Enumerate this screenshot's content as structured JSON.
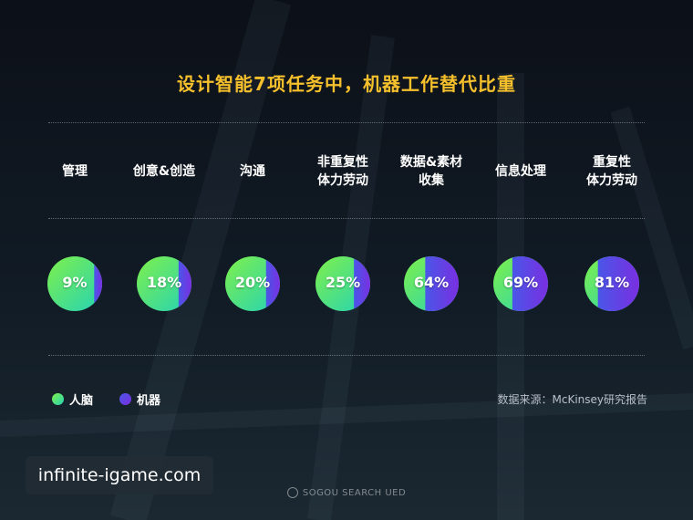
{
  "title": "设计智能7项任务中，机器工作替代比重",
  "legend": {
    "human": "人脑",
    "machine": "机器"
  },
  "colors": {
    "human_start": "#7ff04a",
    "human_end": "#25d3b5",
    "machine_start": "#4a56e8",
    "machine_end": "#7a2fe0",
    "title": "#f5c02c"
  },
  "source": "数据来源：McKinsey研究报告",
  "watermark": "infinite-igame.com",
  "footer": "SOGOU SEARCH UED",
  "chart_data": {
    "type": "pie",
    "title": "设计智能7项任务中，机器工作替代比重",
    "categories": [
      "管理",
      "创意&创造",
      "沟通",
      "非重复性\n体力劳动",
      "数据&素材\n收集",
      "信息处理",
      "重复性\n体力劳动"
    ],
    "series": [
      {
        "name": "机器",
        "values": [
          9,
          18,
          20,
          25,
          64,
          69,
          81
        ]
      },
      {
        "name": "人脑",
        "values": [
          91,
          82,
          80,
          75,
          36,
          31,
          19
        ]
      }
    ],
    "value_labels": [
      "9%",
      "18%",
      "20%",
      "25%",
      "64%",
      "69%",
      "81%"
    ],
    "legend_position": "bottom-left"
  }
}
